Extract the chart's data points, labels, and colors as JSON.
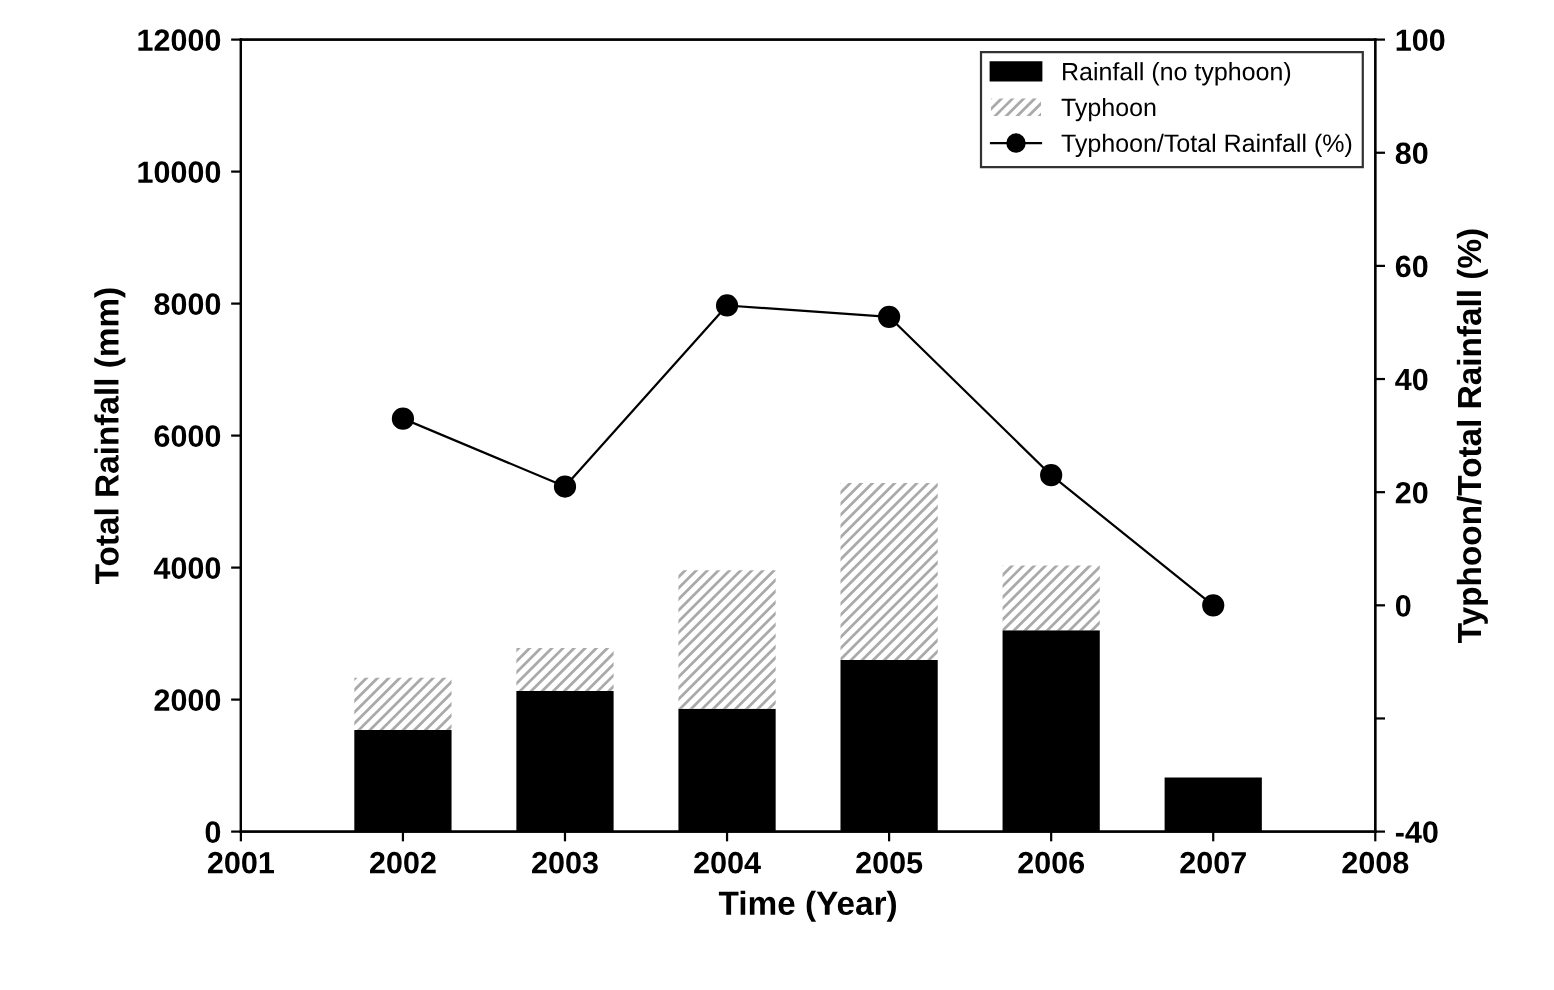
{
  "chart_data": {
    "type": "bar",
    "stacked": true,
    "xlabel": "Time (Year)",
    "ylabel": "Total Rainfall (mm)",
    "y2label": "Typhoon/Total Rainfall (%)",
    "x": [
      2002,
      2003,
      2004,
      2005,
      2006,
      2007
    ],
    "series": [
      {
        "name": "Rainfall (no typhoon)",
        "color": "#000000",
        "values": [
          1540,
          2130,
          1860,
          2600,
          3050,
          820
        ]
      },
      {
        "name": "Typhoon",
        "color": "#aaaaaa",
        "values": [
          790,
          650,
          2100,
          2680,
          980,
          0
        ]
      },
      {
        "name": "Typhoon/Total Rainfall (%)",
        "type": "line",
        "axis": "y2",
        "color": "#000000",
        "marker": "circle",
        "values": [
          33,
          21,
          53,
          51,
          23,
          0
        ]
      }
    ],
    "xlim": [
      2001,
      2008
    ],
    "xticks": [
      2001,
      2002,
      2003,
      2004,
      2005,
      2006,
      2007,
      2008
    ],
    "ylim": [
      0,
      12000
    ],
    "yticks": [
      0,
      2000,
      4000,
      6000,
      8000,
      10000,
      12000
    ],
    "y2lim": [
      -40,
      100
    ],
    "y2ticks": [
      -40,
      {
        "value": -20,
        "label": null
      },
      0,
      20,
      40,
      60,
      80,
      100
    ],
    "legend": "top right",
    "grid": false
  }
}
